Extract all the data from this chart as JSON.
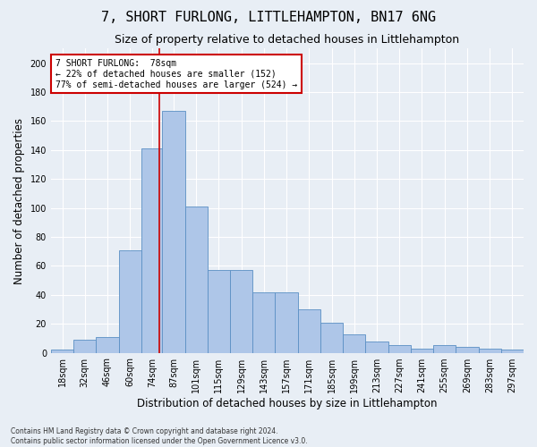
{
  "title": "7, SHORT FURLONG, LITTLEHAMPTON, BN17 6NG",
  "subtitle": "Size of property relative to detached houses in Littlehampton",
  "xlabel": "Distribution of detached houses by size in Littlehampton",
  "ylabel": "Number of detached properties",
  "footer_line1": "Contains HM Land Registry data © Crown copyright and database right 2024.",
  "footer_line2": "Contains public sector information licensed under the Open Government Licence v3.0.",
  "bar_labels": [
    "18sqm",
    "32sqm",
    "46sqm",
    "60sqm",
    "74sqm",
    "87sqm",
    "101sqm",
    "115sqm",
    "129sqm",
    "143sqm",
    "157sqm",
    "171sqm",
    "185sqm",
    "199sqm",
    "213sqm",
    "227sqm",
    "241sqm",
    "255sqm",
    "269sqm",
    "283sqm",
    "297sqm"
  ],
  "bar_values": [
    2,
    9,
    11,
    71,
    141,
    167,
    101,
    57,
    57,
    42,
    42,
    30,
    21,
    13,
    8,
    5,
    3,
    5,
    4,
    3,
    2
  ],
  "bar_color": "#aec6e8",
  "bar_edge_color": "#5a8fc4",
  "vline_x": 78,
  "vline_color": "#cc0000",
  "annotation_line1": "7 SHORT FURLONG:  78sqm",
  "annotation_line2": "← 22% of detached houses are smaller (152)",
  "annotation_line3": "77% of semi-detached houses are larger (524) →",
  "annotation_box_color": "#cc0000",
  "ylim_max": 210,
  "yticks": [
    0,
    20,
    40,
    60,
    80,
    100,
    120,
    140,
    160,
    180,
    200
  ],
  "background_color": "#e8eef5",
  "grid_color": "#ffffff",
  "title_fontsize": 11,
  "subtitle_fontsize": 9,
  "xlabel_fontsize": 8.5,
  "ylabel_fontsize": 8.5,
  "tick_fontsize": 7,
  "annotation_fontsize": 7,
  "footer_fontsize": 5.5
}
